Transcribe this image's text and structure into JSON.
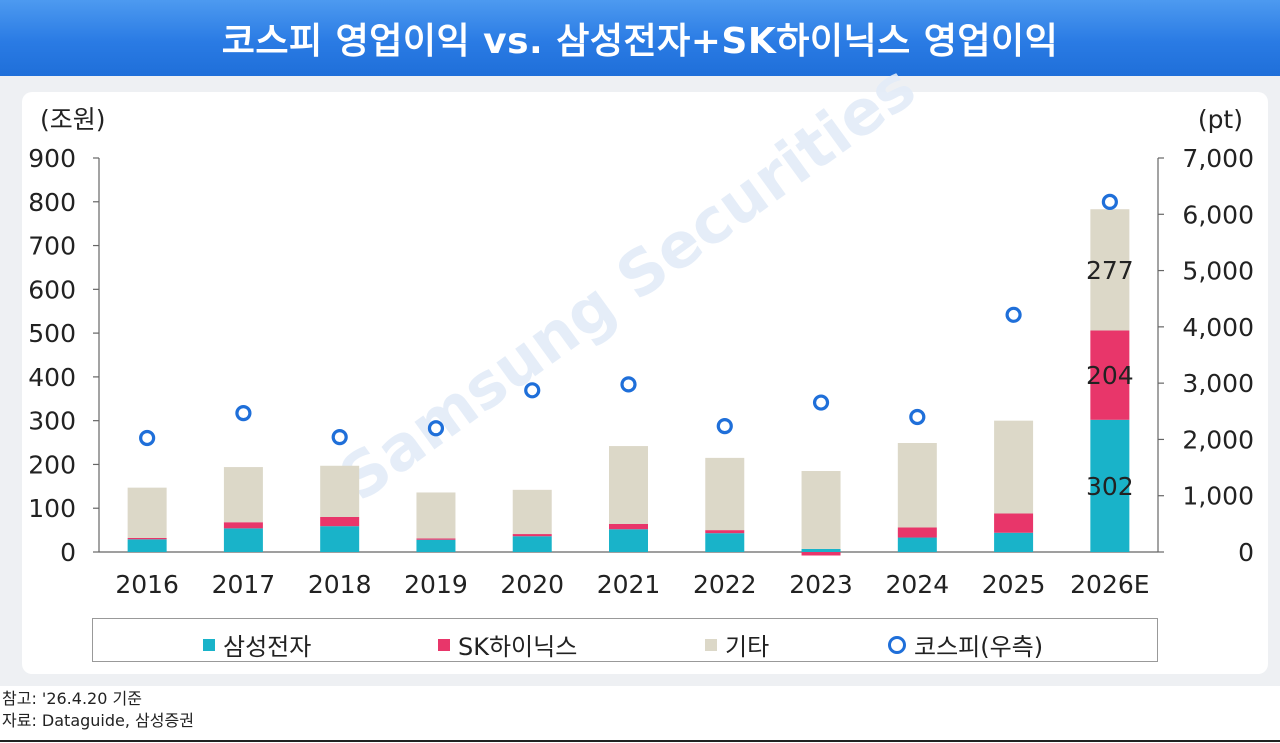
{
  "header": {
    "title": "코스피 영업이익 vs. 삼성전자+SK하이닉스 영업이익"
  },
  "watermark": "Samsung Securities",
  "colors": {
    "samsung": "#19b3c9",
    "skhynix": "#e8366a",
    "other": "#dcd8c8",
    "kospi": "#1f6fd9"
  },
  "chart_data": {
    "type": "bar",
    "stacked": true,
    "categories": [
      "2016",
      "2017",
      "2018",
      "2019",
      "2020",
      "2021",
      "2022",
      "2023",
      "2024",
      "2025",
      "2026E"
    ],
    "series": [
      {
        "name": "삼성전자",
        "values": [
          29,
          54,
          59,
          28,
          36,
          52,
          43,
          7,
          33,
          44,
          302
        ]
      },
      {
        "name": "SK하이닉스",
        "values": [
          3,
          14,
          21,
          3,
          5,
          12,
          7,
          -8,
          23,
          44,
          204
        ]
      },
      {
        "name": "기타",
        "values": [
          115,
          126,
          117,
          105,
          101,
          178,
          165,
          178,
          193,
          212,
          277
        ]
      }
    ],
    "line_series": {
      "name": "코스피(우측)",
      "axis": "right",
      "marker": "circle-open",
      "values": [
        2026,
        2467,
        2041,
        2198,
        2873,
        2978,
        2236,
        2655,
        2399,
        4214,
        6220
      ]
    },
    "bar_labels_2026E": [
      "302",
      "204",
      "277"
    ],
    "y_left": {
      "label": "(조원)",
      "range": [
        0,
        900
      ],
      "ticks": [
        "0",
        "100",
        "200",
        "300",
        "400",
        "500",
        "600",
        "700",
        "800",
        "900"
      ]
    },
    "y_right": {
      "label": "(pt)",
      "range": [
        0,
        7000
      ],
      "ticks": [
        "0",
        "1,000",
        "2,000",
        "3,000",
        "4,000",
        "5,000",
        "6,000",
        "7,000"
      ]
    },
    "legend": [
      "삼성전자",
      "SK하이닉스",
      "기타",
      "코스피(우측)"
    ],
    "legend_position": "bottom"
  },
  "footnotes": {
    "note": "참고: '26.4.20 기준",
    "source": "자료: Dataguide, 삼성증권"
  }
}
